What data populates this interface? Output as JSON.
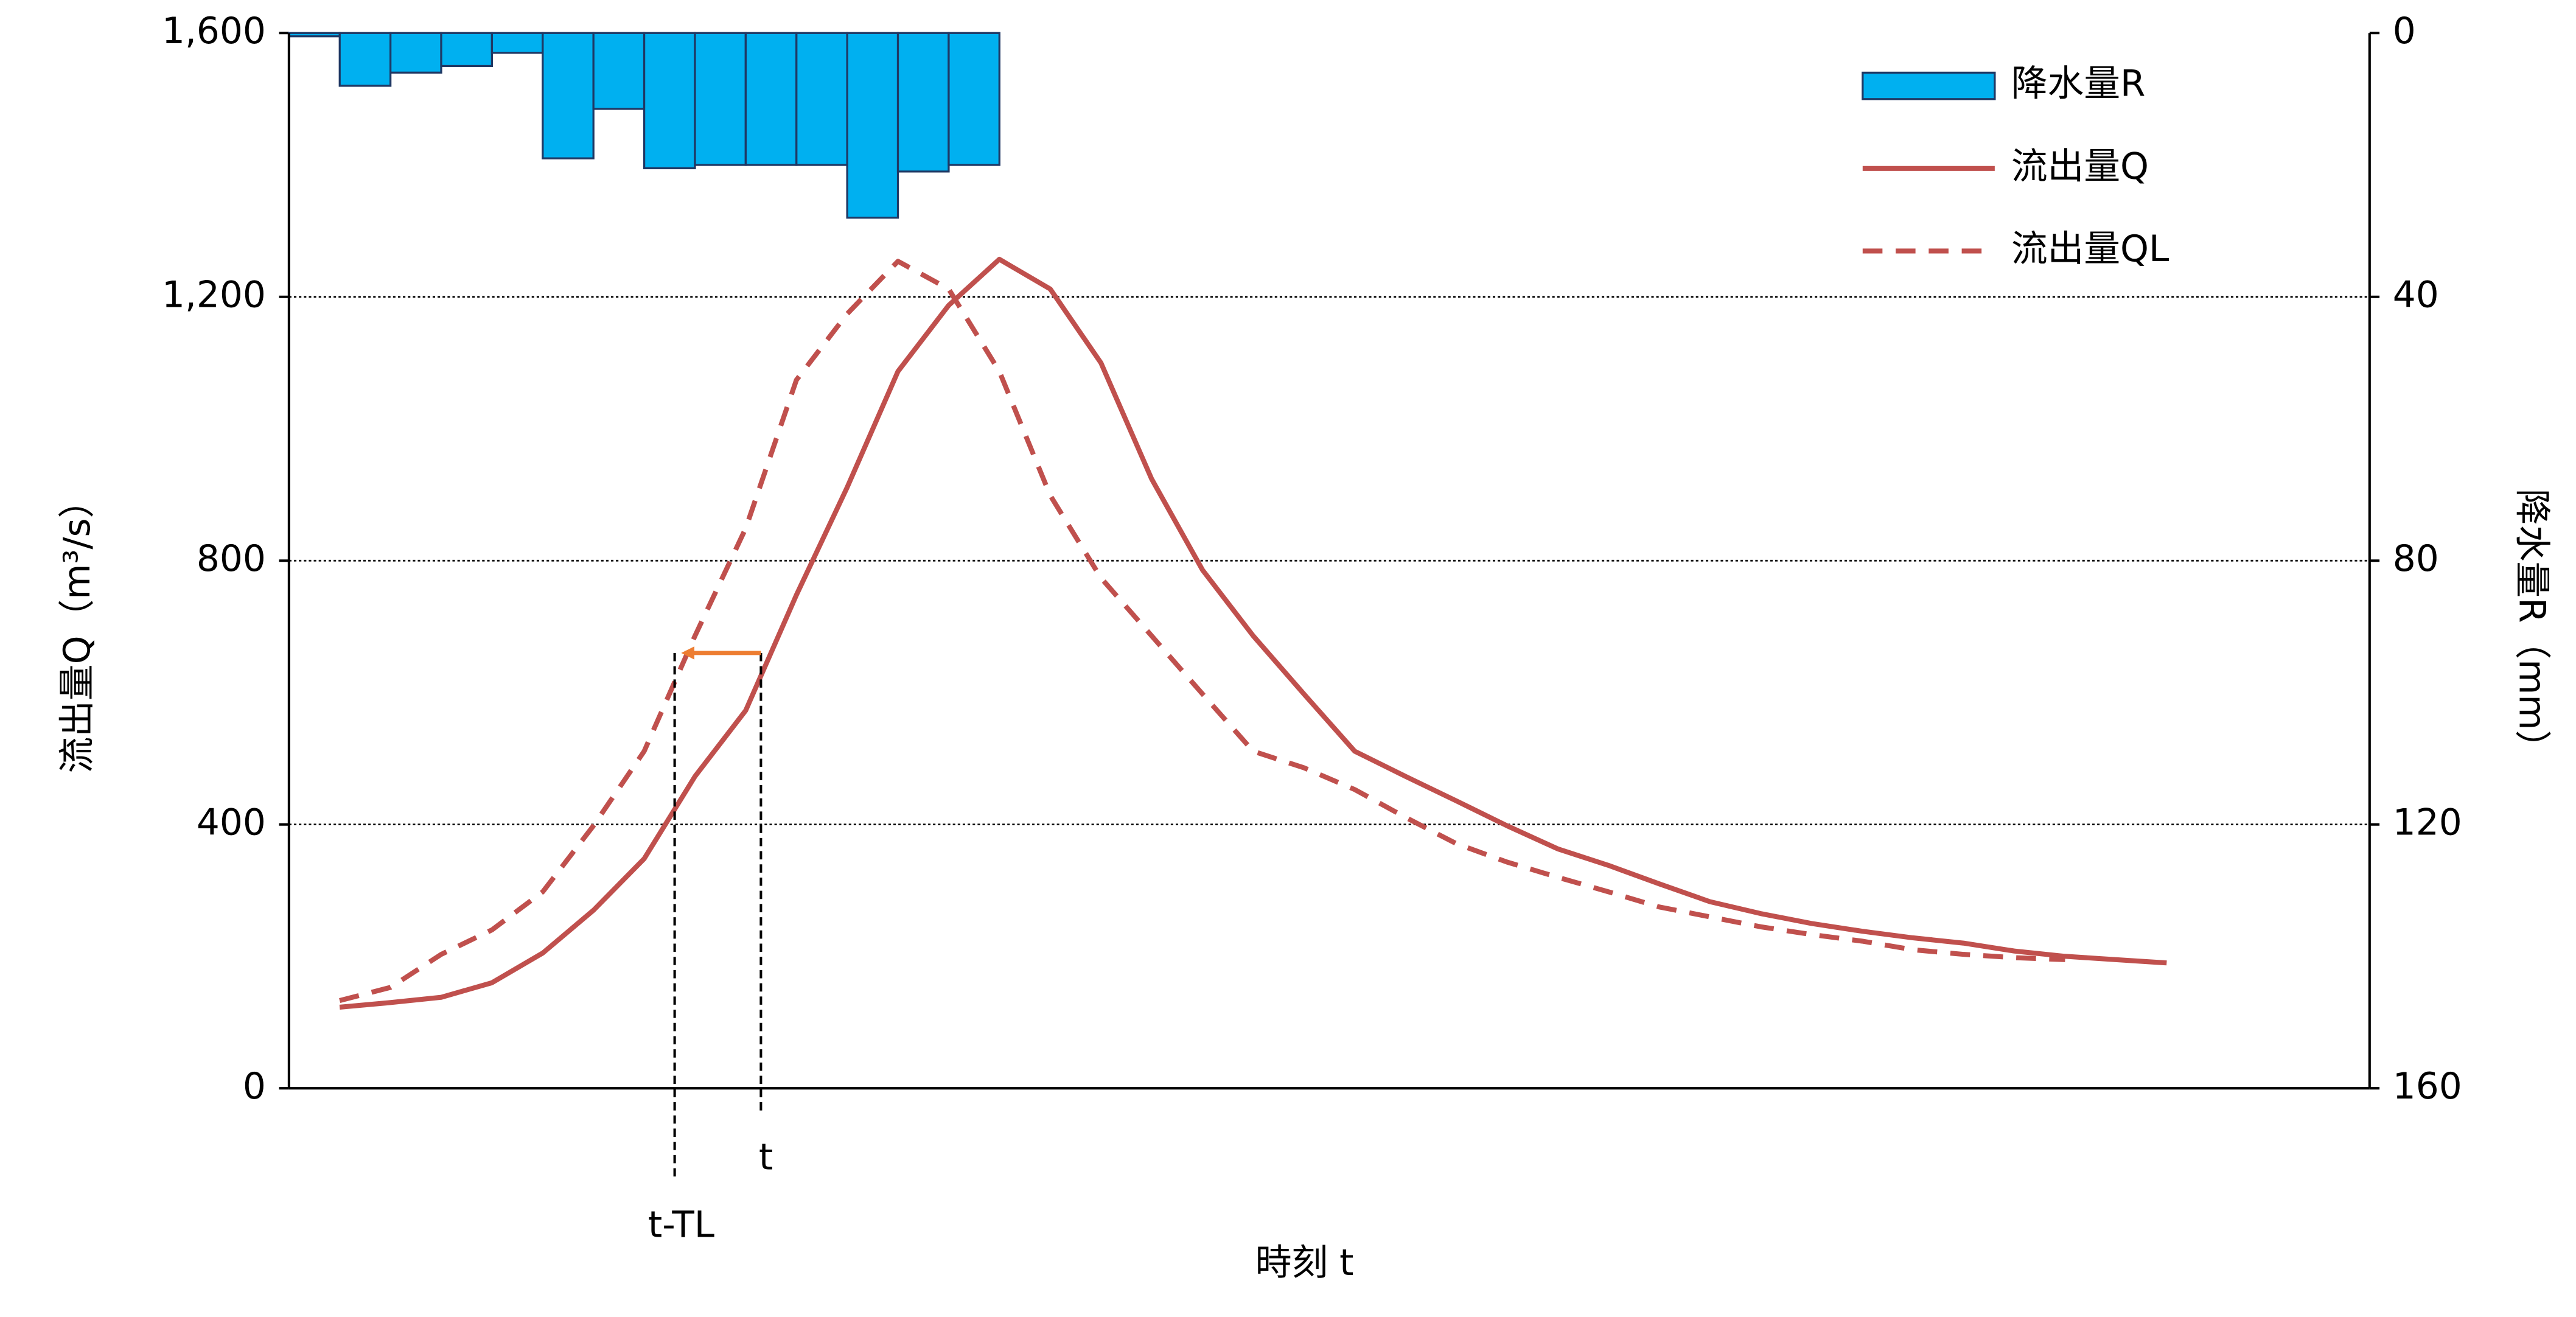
{
  "chart_data": {
    "type": "bar-line",
    "x_label": "時刻 t",
    "y_label": "流出量Q（m³/s）",
    "y2_label": "降水量R（mm）",
    "xlim": [
      0,
      41
    ],
    "ylim": [
      0,
      1600
    ],
    "yticks": [
      0,
      400,
      800,
      {
        "value": 1200,
        "label": "1,200"
      },
      {
        "value": 1600,
        "label": "1,600"
      }
    ],
    "y2lim": [
      0,
      160
    ],
    "y2_inverted": true,
    "y2ticks": [
      0,
      40,
      80,
      120,
      160
    ],
    "grid": true,
    "legend": "top-right",
    "bars": {
      "name": "降水量R",
      "color": "#00b0f0",
      "axis": "y2",
      "x": [
        0,
        1,
        2,
        3,
        4,
        5,
        6,
        7,
        8,
        9,
        10,
        11,
        12,
        13
      ],
      "values": [
        0.5,
        8,
        6,
        5,
        3,
        19,
        11.5,
        20.5,
        20,
        20,
        20,
        28,
        21,
        20
      ]
    },
    "x": [
      1,
      2,
      3,
      4,
      5,
      6,
      7,
      8,
      9,
      10,
      11,
      12,
      13,
      14,
      15,
      16,
      17,
      18,
      19,
      20,
      21,
      22,
      23,
      24,
      25,
      26,
      27,
      28,
      29,
      30,
      31,
      32,
      33,
      34,
      35,
      36,
      37
    ],
    "series": [
      {
        "name": "流出量Q",
        "color": "#c0504d",
        "dash": false,
        "values": [
          123,
          130,
          138,
          160,
          205,
          270,
          348,
          473,
          573,
          748,
          911,
          1087,
          1187,
          1257,
          1212,
          1100,
          924,
          786,
          686,
          598,
          511,
          473,
          436,
          398,
          363,
          338,
          310,
          283,
          265,
          250,
          238,
          228,
          220,
          208,
          200,
          195,
          190
        ]
      },
      {
        "name": "流出量QL",
        "color": "#c0504d",
        "dash": true,
        "values": [
          133,
          153,
          203,
          240,
          298,
          398,
          511,
          686,
          849,
          1074,
          1174,
          1254,
          1212,
          1087,
          899,
          774,
          686,
          598,
          511,
          486,
          453,
          411,
          371,
          343,
          320,
          298,
          275,
          260,
          245,
          233,
          223,
          210,
          203,
          198,
          195,
          null,
          null
        ]
      }
    ],
    "annotations": [
      {
        "text": "t",
        "x": 9.3
      },
      {
        "text": "t-TL",
        "x": 7.6
      }
    ],
    "arrow": {
      "from": 9.3,
      "to": 7.6,
      "y": 660,
      "color": "#ed7d31"
    }
  }
}
